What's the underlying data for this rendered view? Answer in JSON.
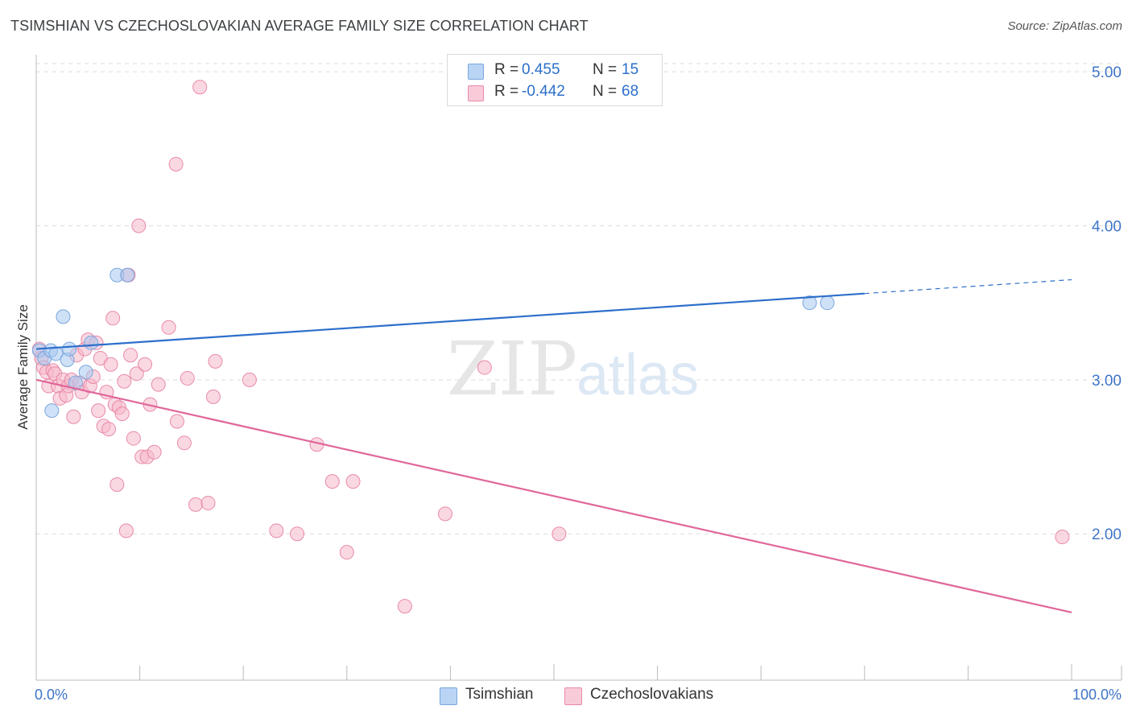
{
  "title": "TSIMSHIAN VS CZECHOSLOVAKIAN AVERAGE FAMILY SIZE CORRELATION CHART",
  "source": "Source: ZipAtlas.com",
  "watermark": {
    "zip": "ZIP",
    "atlas": "atlas"
  },
  "legend": {
    "rows": [
      {
        "r_label": "R =",
        "r_value": "0.455",
        "n_label": "N =",
        "n_value": "15"
      },
      {
        "r_label": "R =",
        "r_value": "-0.442",
        "n_label": "N =",
        "n_value": "68"
      }
    ]
  },
  "bottom_legend": [
    "Tsimshian",
    "Czechoslovakians"
  ],
  "colors": {
    "blue_fill": "#a8c8f0",
    "blue_stroke": "#7aa7de",
    "blue_line": "#2d6fcb",
    "pink_fill": "#f5b8cb",
    "pink_stroke": "#e98aa8",
    "pink_line": "#e0679a",
    "tick_label": "#3d74c7",
    "grid": "#dddddd"
  },
  "chart_data": {
    "type": "scatter",
    "title": "TSIMSHIAN VS CZECHOSLOVAKIAN AVERAGE FAMILY SIZE CORRELATION CHART",
    "xlabel": "",
    "ylabel": "Average Family Size",
    "xlim": [
      0,
      100
    ],
    "ylim": [
      1.05,
      5.1
    ],
    "x_tick_labels": [
      "0.0%",
      "100.0%"
    ],
    "y_ticks": [
      2.0,
      3.0,
      4.0,
      5.0
    ],
    "y_tick_labels": [
      "2.00",
      "3.00",
      "4.00",
      "5.00"
    ],
    "grid": true,
    "series": [
      {
        "name": "Tsimshian",
        "r": 0.455,
        "n": 15,
        "points": [
          [
            0.3,
            3.19
          ],
          [
            0.8,
            3.14
          ],
          [
            1.4,
            3.19
          ],
          [
            1.9,
            3.17
          ],
          [
            1.5,
            2.8
          ],
          [
            2.6,
            3.41
          ],
          [
            3.0,
            3.13
          ],
          [
            3.2,
            3.2
          ],
          [
            4.8,
            3.05
          ],
          [
            5.3,
            3.24
          ],
          [
            7.8,
            3.68
          ],
          [
            8.8,
            3.68
          ],
          [
            74.7,
            3.5
          ],
          [
            76.4,
            3.5
          ],
          [
            3.8,
            2.98
          ]
        ],
        "trend": {
          "x0": 0,
          "y0": 3.2,
          "x1": 80,
          "y1": 3.56,
          "dash_to_x": 100,
          "dash_to_y": 3.65
        }
      },
      {
        "name": "Czechoslovakians",
        "r": -0.442,
        "n": 68,
        "points": [
          [
            0.3,
            3.2
          ],
          [
            0.5,
            3.14
          ],
          [
            0.7,
            3.08
          ],
          [
            1.0,
            3.05
          ],
          [
            1.2,
            2.96
          ],
          [
            1.6,
            3.06
          ],
          [
            1.8,
            3.04
          ],
          [
            2.1,
            2.96
          ],
          [
            2.3,
            2.88
          ],
          [
            2.6,
            3.0
          ],
          [
            2.9,
            2.9
          ],
          [
            3.1,
            2.96
          ],
          [
            3.4,
            3.0
          ],
          [
            3.6,
            2.76
          ],
          [
            3.9,
            3.16
          ],
          [
            4.2,
            2.98
          ],
          [
            4.4,
            2.92
          ],
          [
            4.7,
            3.2
          ],
          [
            5.0,
            3.26
          ],
          [
            5.2,
            2.96
          ],
          [
            5.5,
            3.02
          ],
          [
            5.8,
            3.24
          ],
          [
            6.0,
            2.8
          ],
          [
            6.2,
            3.14
          ],
          [
            6.5,
            2.7
          ],
          [
            6.8,
            2.92
          ],
          [
            7.0,
            2.68
          ],
          [
            7.2,
            3.1
          ],
          [
            7.4,
            3.4
          ],
          [
            7.6,
            2.84
          ],
          [
            7.8,
            2.32
          ],
          [
            8.0,
            2.82
          ],
          [
            8.3,
            2.78
          ],
          [
            8.5,
            2.99
          ],
          [
            8.7,
            2.02
          ],
          [
            8.9,
            3.68
          ],
          [
            9.1,
            3.16
          ],
          [
            9.4,
            2.62
          ],
          [
            9.7,
            3.04
          ],
          [
            9.9,
            4.0
          ],
          [
            10.2,
            2.5
          ],
          [
            10.5,
            3.1
          ],
          [
            10.7,
            2.5
          ],
          [
            11.0,
            2.84
          ],
          [
            11.4,
            2.53
          ],
          [
            11.8,
            2.97
          ],
          [
            12.8,
            3.34
          ],
          [
            13.5,
            4.4
          ],
          [
            13.6,
            2.73
          ],
          [
            14.3,
            2.59
          ],
          [
            14.6,
            3.01
          ],
          [
            15.4,
            2.19
          ],
          [
            15.8,
            4.9
          ],
          [
            16.6,
            2.2
          ],
          [
            17.1,
            2.89
          ],
          [
            17.3,
            3.12
          ],
          [
            20.6,
            3.0
          ],
          [
            23.2,
            2.02
          ],
          [
            25.2,
            2.0
          ],
          [
            27.1,
            2.58
          ],
          [
            28.6,
            2.34
          ],
          [
            30.0,
            1.88
          ],
          [
            30.6,
            2.34
          ],
          [
            35.6,
            1.53
          ],
          [
            39.5,
            2.13
          ],
          [
            43.3,
            3.08
          ],
          [
            50.5,
            2.0
          ],
          [
            99.1,
            1.98
          ]
        ],
        "trend": {
          "x0": 0,
          "y0": 3.0,
          "x1": 100,
          "y1": 1.49
        }
      }
    ]
  }
}
